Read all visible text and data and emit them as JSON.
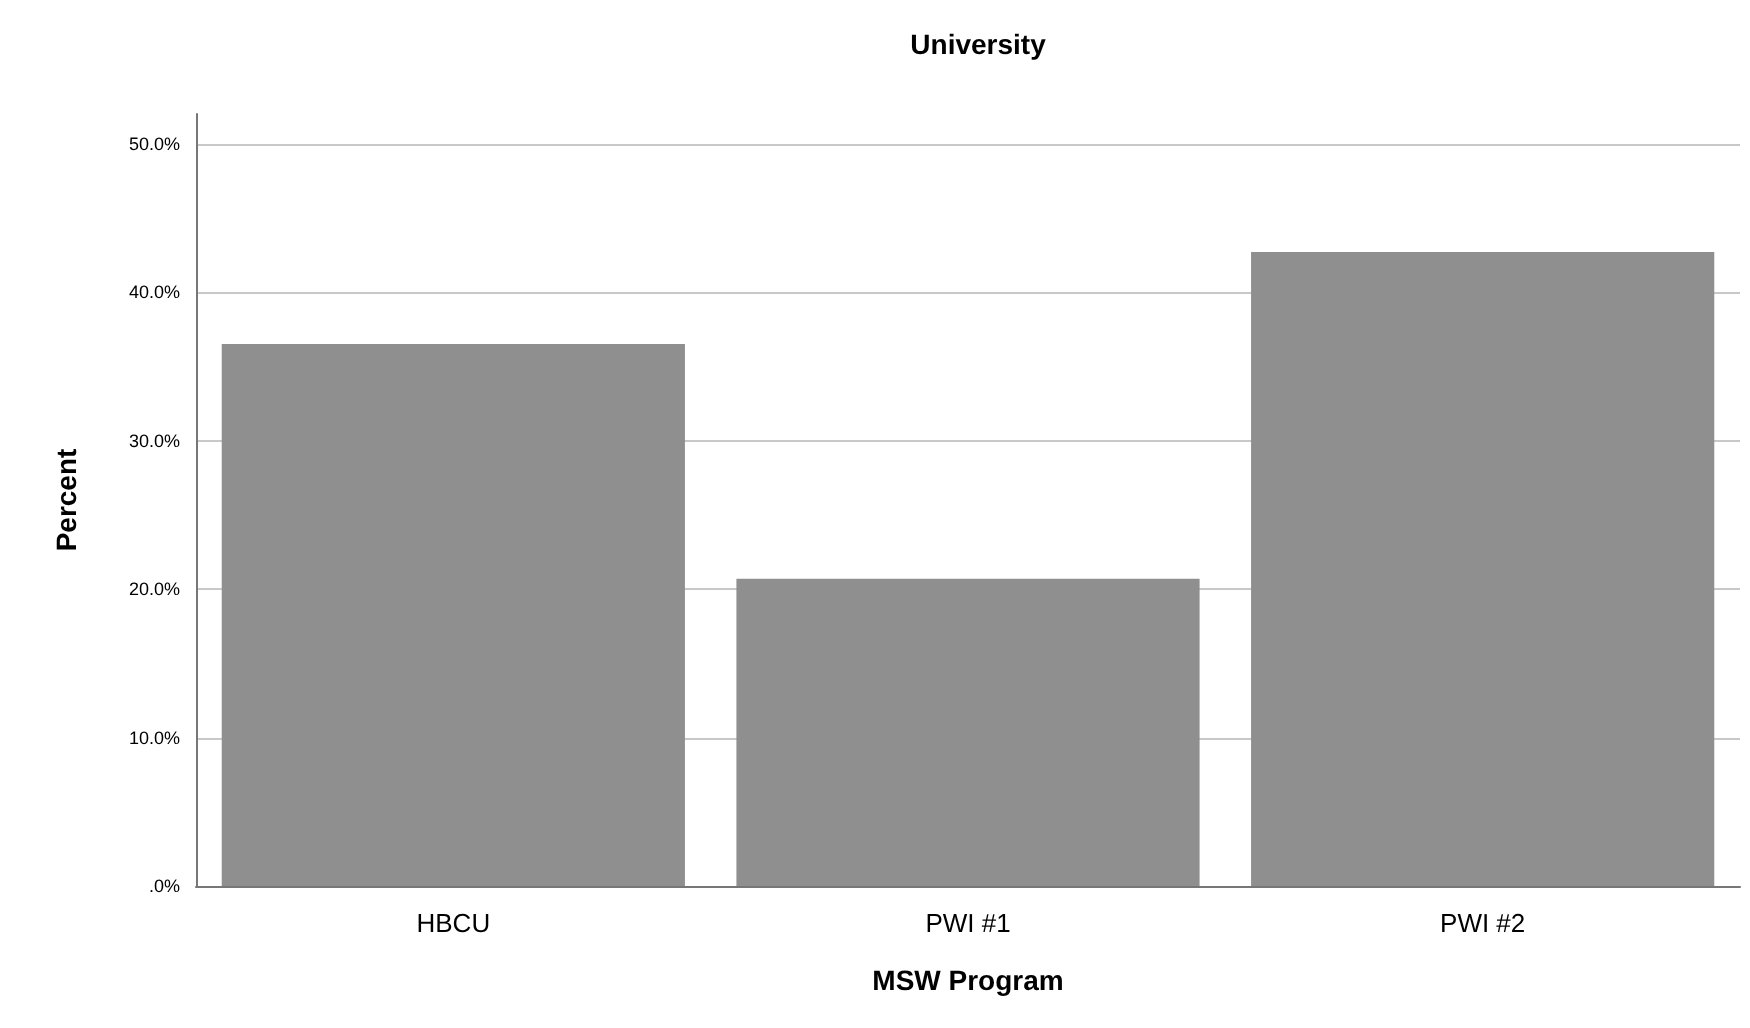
{
  "chart_data": {
    "type": "bar",
    "title": "University",
    "xlabel": "MSW Program",
    "ylabel": "Percent",
    "categories": [
      "HBCU",
      "PWI #1",
      "PWI #2"
    ],
    "values": [
      36.5,
      20.7,
      42.7
    ],
    "color": "#8f8f8f",
    "ylim": [
      0,
      52
    ],
    "yticks": [
      {
        "value": 0,
        "label": ".0%"
      },
      {
        "value": 10,
        "label": "10.0%"
      },
      {
        "value": 20,
        "label": "20.0%"
      },
      {
        "value": 30,
        "label": "30.0%"
      },
      {
        "value": 40,
        "label": "40.0%"
      },
      {
        "value": 50,
        "label": "50.0%"
      }
    ],
    "grid": "y"
  }
}
